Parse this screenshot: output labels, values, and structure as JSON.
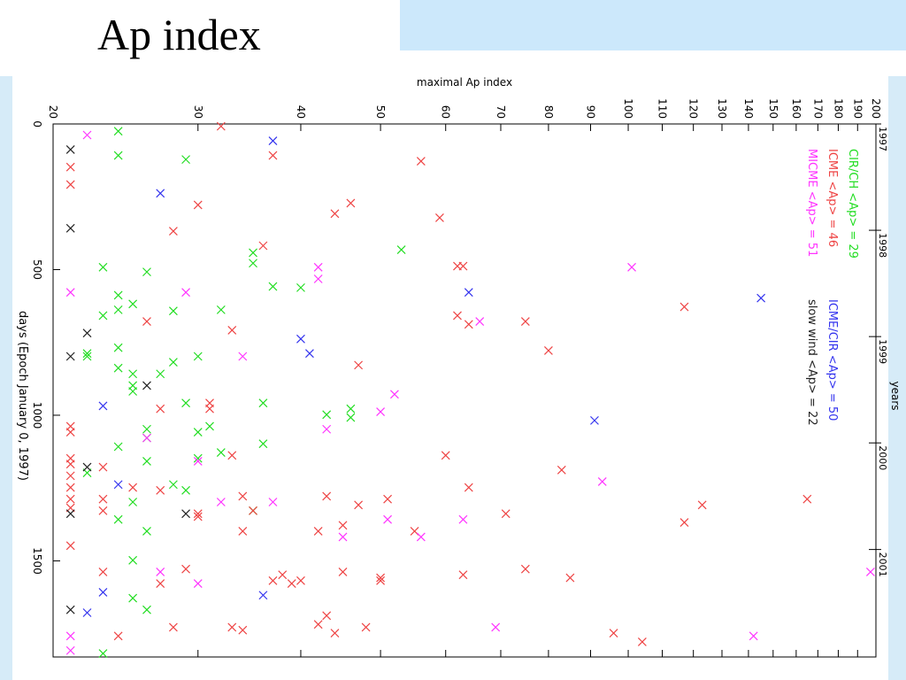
{
  "slide": {
    "title": "Ap index"
  },
  "colors": {
    "cir": "#22dd22",
    "icme": "#ee4444",
    "micme": "#ff33ff",
    "mixed": "#3333ee",
    "slow": "#222222",
    "axis": "#000000"
  },
  "chart_data": {
    "type": "scatter",
    "title": "",
    "xlabel": "maximal Ap index",
    "ylabel": "days (Epoch January 0, 1997)",
    "secondary_axis_label": "years",
    "x_scale": "log",
    "xlim": [
      20,
      200
    ],
    "ylim": [
      0,
      1830
    ],
    "x_ticks": [
      20,
      30,
      40,
      50,
      60,
      70,
      80,
      90,
      100,
      110,
      120,
      130,
      140,
      150,
      160,
      170,
      180,
      190,
      200
    ],
    "y_ticks": [
      0,
      500,
      1000,
      1500
    ],
    "year_ticks": [
      {
        "label": "1997",
        "day": 0
      },
      {
        "label": "1998",
        "day": 365
      },
      {
        "label": "1999",
        "day": 730
      },
      {
        "label": "2000",
        "day": 1095
      },
      {
        "label": "2001",
        "day": 1461
      }
    ],
    "legend": [
      {
        "text": "CIR/CH <Ap> = 29",
        "key": "cir"
      },
      {
        "text": "ICME <Ap> = 46",
        "key": "icme"
      },
      {
        "text": "MICME <Ap> = 51",
        "key": "micme"
      },
      {
        "text": "ICME/CIR <Ap> = 50",
        "key": "mixed"
      },
      {
        "text": "slow wind <Ap> = 22",
        "key": "slow"
      }
    ],
    "series": [
      {
        "name": "CIR/CH",
        "key": "cir",
        "points": [
          [
            24,
            25
          ],
          [
            24,
            108
          ],
          [
            29,
            122
          ],
          [
            53,
            432
          ],
          [
            35,
            442
          ],
          [
            35,
            478
          ],
          [
            23,
            492
          ],
          [
            26,
            508
          ],
          [
            37,
            558
          ],
          [
            40,
            562
          ],
          [
            24,
            588
          ],
          [
            25,
            618
          ],
          [
            24,
            638
          ],
          [
            32,
            638
          ],
          [
            28,
            642
          ],
          [
            23,
            658
          ],
          [
            24,
            768
          ],
          [
            22,
            788
          ],
          [
            22,
            798
          ],
          [
            30,
            798
          ],
          [
            28,
            818
          ],
          [
            24,
            838
          ],
          [
            25,
            858
          ],
          [
            27,
            858
          ],
          [
            25,
            898
          ],
          [
            25,
            918
          ],
          [
            29,
            958
          ],
          [
            36,
            958
          ],
          [
            46,
            978
          ],
          [
            43,
            998
          ],
          [
            46,
            1008
          ],
          [
            31,
            1038
          ],
          [
            26,
            1048
          ],
          [
            30,
            1058
          ],
          [
            26,
            1078
          ],
          [
            24,
            1108
          ],
          [
            36,
            1098
          ],
          [
            32,
            1128
          ],
          [
            30,
            1148
          ],
          [
            26,
            1158
          ],
          [
            22,
            1198
          ],
          [
            28,
            1238
          ],
          [
            29,
            1258
          ],
          [
            25,
            1298
          ],
          [
            35,
            1328
          ],
          [
            24,
            1358
          ],
          [
            26,
            1398
          ],
          [
            25,
            1498
          ],
          [
            25,
            1628
          ],
          [
            26,
            1668
          ],
          [
            23,
            1818
          ]
        ]
      },
      {
        "name": "ICME",
        "key": "icme",
        "points": [
          [
            32,
            8
          ],
          [
            37,
            108
          ],
          [
            56,
            128
          ],
          [
            21,
            148
          ],
          [
            21,
            208
          ],
          [
            30,
            278
          ],
          [
            46,
            272
          ],
          [
            44,
            308
          ],
          [
            59,
            322
          ],
          [
            28,
            368
          ],
          [
            36,
            418
          ],
          [
            62,
            488
          ],
          [
            63,
            488
          ],
          [
            62,
            658
          ],
          [
            64,
            688
          ],
          [
            75,
            678
          ],
          [
            117,
            628
          ],
          [
            26,
            678
          ],
          [
            33,
            708
          ],
          [
            80,
            778
          ],
          [
            47,
            828
          ],
          [
            27,
            978
          ],
          [
            31,
            958
          ],
          [
            31,
            978
          ],
          [
            21,
            1038
          ],
          [
            21,
            1058
          ],
          [
            60,
            1138
          ],
          [
            21,
            1148
          ],
          [
            33,
            1138
          ],
          [
            21,
            1168
          ],
          [
            23,
            1178
          ],
          [
            83,
            1188
          ],
          [
            21,
            1208
          ],
          [
            21,
            1248
          ],
          [
            25,
            1248
          ],
          [
            27,
            1258
          ],
          [
            64,
            1248
          ],
          [
            21,
            1288
          ],
          [
            23,
            1288
          ],
          [
            34,
            1278
          ],
          [
            43,
            1278
          ],
          [
            51,
            1288
          ],
          [
            165,
            1288
          ],
          [
            21,
            1318
          ],
          [
            23,
            1328
          ],
          [
            30,
            1338
          ],
          [
            30,
            1348
          ],
          [
            35,
            1328
          ],
          [
            47,
            1308
          ],
          [
            71,
            1338
          ],
          [
            123,
            1308
          ],
          [
            117,
            1368
          ],
          [
            45,
            1378
          ],
          [
            34,
            1398
          ],
          [
            42,
            1398
          ],
          [
            55,
            1398
          ],
          [
            21,
            1448
          ],
          [
            23,
            1538
          ],
          [
            29,
            1528
          ],
          [
            38,
            1548
          ],
          [
            40,
            1568
          ],
          [
            39,
            1578
          ],
          [
            37,
            1568
          ],
          [
            45,
            1538
          ],
          [
            50,
            1558
          ],
          [
            50,
            1568
          ],
          [
            63,
            1548
          ],
          [
            75,
            1528
          ],
          [
            85,
            1558
          ],
          [
            27,
            1578
          ],
          [
            43,
            1688
          ],
          [
            42,
            1718
          ],
          [
            33,
            1728
          ],
          [
            34,
            1738
          ],
          [
            28,
            1728
          ],
          [
            44,
            1748
          ],
          [
            48,
            1728
          ],
          [
            24,
            1758
          ],
          [
            96,
            1748
          ],
          [
            104,
            1778
          ]
        ]
      },
      {
        "name": "MICME",
        "key": "micme",
        "points": [
          [
            22,
            38
          ],
          [
            21,
            578
          ],
          [
            29,
            578
          ],
          [
            42,
            492
          ],
          [
            42,
            532
          ],
          [
            101,
            492
          ],
          [
            66,
            678
          ],
          [
            34,
            798
          ],
          [
            50,
            988
          ],
          [
            52,
            928
          ],
          [
            43,
            1048
          ],
          [
            26,
            1078
          ],
          [
            30,
            1158
          ],
          [
            93,
            1228
          ],
          [
            32,
            1298
          ],
          [
            37,
            1298
          ],
          [
            51,
            1358
          ],
          [
            63,
            1358
          ],
          [
            45,
            1418
          ],
          [
            56,
            1418
          ],
          [
            27,
            1538
          ],
          [
            30,
            1578
          ],
          [
            197,
            1538
          ],
          [
            21,
            1758
          ],
          [
            69,
            1728
          ],
          [
            142,
            1758
          ],
          [
            21,
            1808
          ]
        ]
      },
      {
        "name": "ICME/CIR",
        "key": "mixed",
        "points": [
          [
            37,
            58
          ],
          [
            27,
            238
          ],
          [
            64,
            578
          ],
          [
            145,
            598
          ],
          [
            40,
            738
          ],
          [
            41,
            788
          ],
          [
            23,
            968
          ],
          [
            91,
            1018
          ],
          [
            24,
            1238
          ],
          [
            23,
            1608
          ],
          [
            36,
            1618
          ],
          [
            22,
            1678
          ]
        ]
      },
      {
        "name": "slow wind",
        "key": "slow",
        "points": [
          [
            21,
            88
          ],
          [
            21,
            358
          ],
          [
            22,
            718
          ],
          [
            21,
            798
          ],
          [
            26,
            898
          ],
          [
            22,
            1178
          ],
          [
            21,
            1338
          ],
          [
            29,
            1338
          ],
          [
            21,
            1668
          ]
        ]
      }
    ]
  }
}
